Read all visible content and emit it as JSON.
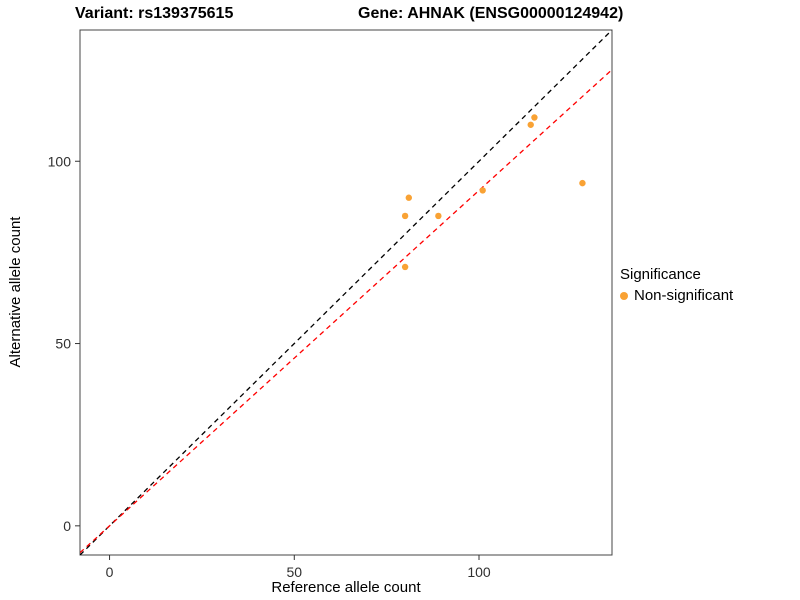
{
  "titles": {
    "left": "Variant: rs139375615",
    "right": "Gene: AHNAK (ENSG00000124942)"
  },
  "chart_data": {
    "type": "scatter",
    "xlabel": "Reference allele count",
    "ylabel": "Alternative allele count",
    "xlim": [
      -8,
      136
    ],
    "ylim": [
      -8,
      136
    ],
    "xticks": [
      0,
      50,
      100
    ],
    "yticks": [
      0,
      50,
      100
    ],
    "grid": false,
    "panel_border_color": "#444444",
    "point_color": "#F9A234",
    "points": [
      {
        "x": 81,
        "y": 90
      },
      {
        "x": 80,
        "y": 85
      },
      {
        "x": 80,
        "y": 71
      },
      {
        "x": 89,
        "y": 85
      },
      {
        "x": 101,
        "y": 92
      },
      {
        "x": 114,
        "y": 110
      },
      {
        "x": 115,
        "y": 112
      },
      {
        "x": 128,
        "y": 94
      }
    ],
    "lines": [
      {
        "name": "identity",
        "slope": 1.0,
        "intercept": 0,
        "color": "#000000",
        "dashed": true
      },
      {
        "name": "fit",
        "slope": 0.92,
        "intercept": 0,
        "color": "#FF0000",
        "dashed": true
      }
    ],
    "legend": {
      "position": "right",
      "title": "Significance",
      "entries": [
        {
          "label": "Non-significant",
          "color": "#F9A234"
        }
      ]
    }
  }
}
